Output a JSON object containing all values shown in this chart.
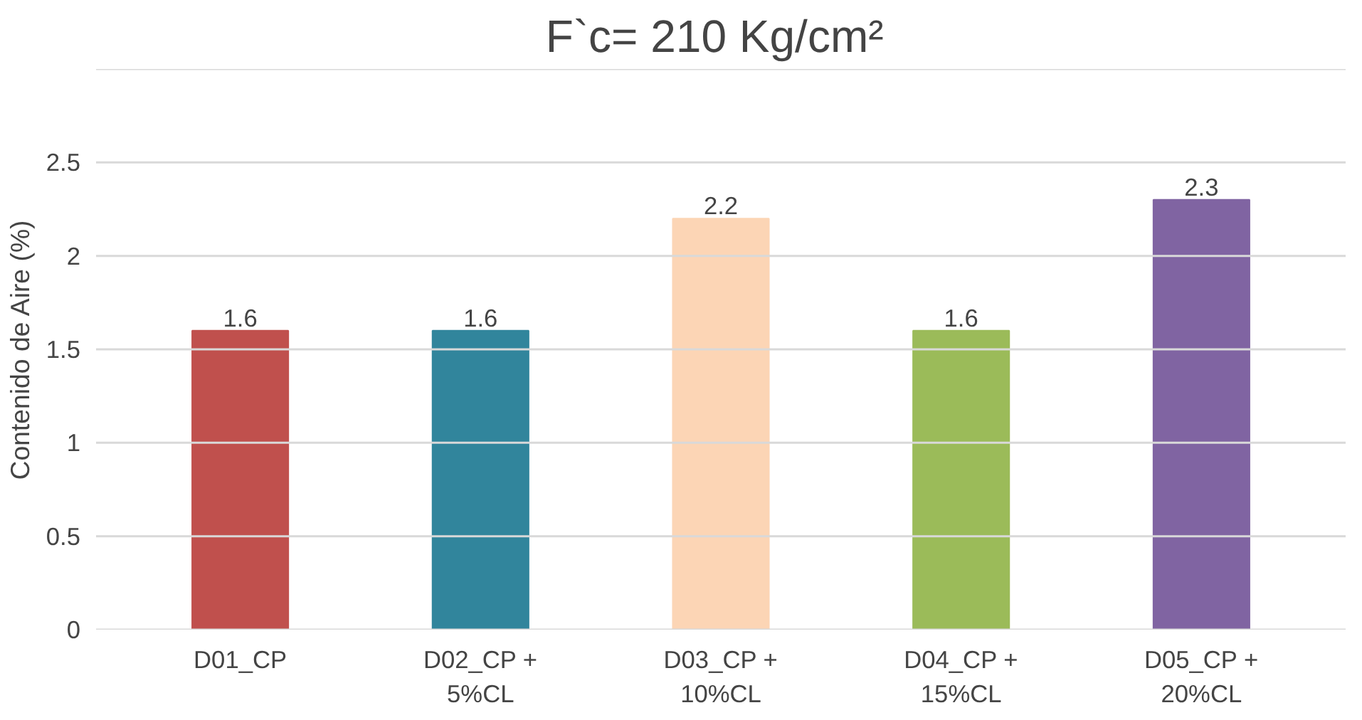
{
  "chart_data": {
    "type": "bar",
    "title": "F`c= 210  Kg/cm²",
    "ylabel": "Contenido de Aire (%)",
    "categories": [
      "D01_CP",
      "D02_CP +\n5%CL",
      "D03_CP +\n10%CL",
      "D04_CP +\n15%CL",
      "D05_CP +\n20%CL"
    ],
    "values": [
      1.6,
      1.6,
      2.2,
      1.6,
      2.3
    ],
    "colors": [
      "#c0504d",
      "#31859c",
      "#fcd5b5",
      "#9bbb59",
      "#8064a2"
    ],
    "ylim": [
      0,
      3
    ],
    "yticks": [
      0,
      0.5,
      1,
      1.5,
      2,
      2.5,
      {
        "value": 3,
        "label": null
      }
    ],
    "grid": "y",
    "data_labels": true
  }
}
